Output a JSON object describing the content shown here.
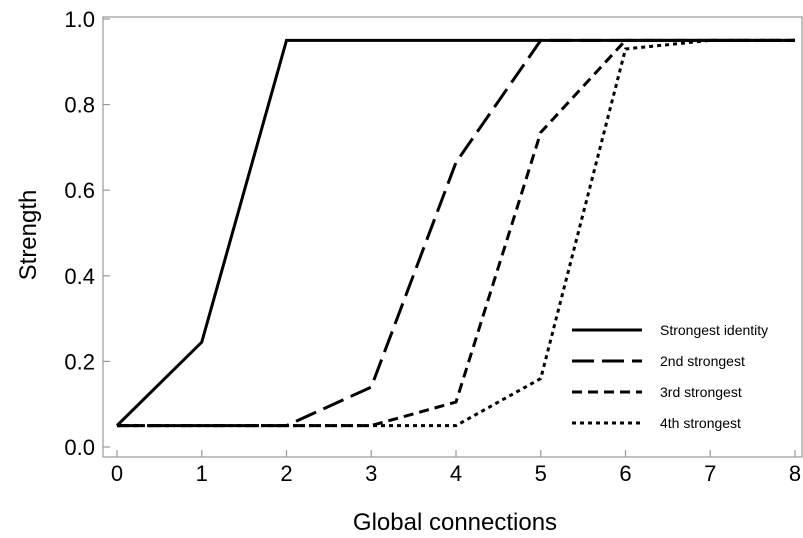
{
  "chart_data": {
    "type": "line",
    "xlabel": "Global connections",
    "ylabel": "Strength",
    "xlim": [
      0,
      8
    ],
    "ylim": [
      0,
      1
    ],
    "x_ticks": [
      0,
      1,
      2,
      3,
      4,
      5,
      6,
      7,
      8
    ],
    "y_ticks": [
      0.0,
      0.2,
      0.4,
      0.6,
      0.8,
      1.0
    ],
    "y_tick_labels": [
      "0.0",
      "0.2",
      "0.4",
      "0.6",
      "0.8",
      "1.0"
    ],
    "x": [
      0,
      1,
      2,
      3,
      4,
      5,
      6,
      7,
      8
    ],
    "series": [
      {
        "name": "Strongest identity",
        "values": [
          0.05,
          0.245,
          0.95,
          0.95,
          0.95,
          0.95,
          0.95,
          0.95,
          0.95
        ],
        "dash": "solid"
      },
      {
        "name": "2nd strongest",
        "values": [
          0.05,
          0.05,
          0.05,
          0.14,
          0.665,
          0.95,
          0.95,
          0.95,
          0.95
        ],
        "dash": "long-dash"
      },
      {
        "name": "3rd strongest",
        "values": [
          0.05,
          0.05,
          0.05,
          0.05,
          0.105,
          0.735,
          0.95,
          0.95,
          0.95
        ],
        "dash": "short-dash"
      },
      {
        "name": "4th strongest",
        "values": [
          0.05,
          0.05,
          0.05,
          0.05,
          0.05,
          0.16,
          0.93,
          0.95,
          0.95
        ],
        "dash": "dotted"
      }
    ],
    "legend_position": "bottom-right",
    "grid": false,
    "colors": {
      "line": "#000000",
      "frame": "#999999"
    }
  }
}
